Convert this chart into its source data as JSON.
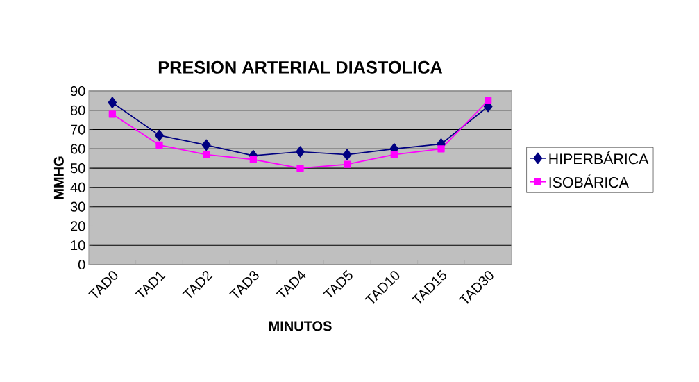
{
  "chart_data": {
    "type": "line",
    "title": "PRESION ARTERIAL DIASTOLICA",
    "xlabel": "MINUTOS",
    "ylabel": "MMHG",
    "categories": [
      "TAD0",
      "TAD1",
      "TAD2",
      "TAD3",
      "TAD4",
      "TAD5",
      "TAD10",
      "TAD15",
      "TAD30"
    ],
    "series": [
      {
        "name": "HIPERBÁRICA",
        "color": "#000080",
        "marker": "diamond",
        "values": [
          84,
          67,
          62,
          56.5,
          58.5,
          57,
          60,
          62.5,
          82
        ]
      },
      {
        "name": "ISOBÁRICA",
        "color": "#ff00ff",
        "marker": "square",
        "values": [
          78,
          62,
          57,
          54.5,
          50,
          52,
          57,
          60,
          85
        ]
      }
    ],
    "ylim": [
      0,
      90
    ],
    "yticks": [
      0,
      10,
      20,
      30,
      40,
      50,
      60,
      70,
      80,
      90
    ],
    "grid": "y",
    "legend": "right"
  }
}
